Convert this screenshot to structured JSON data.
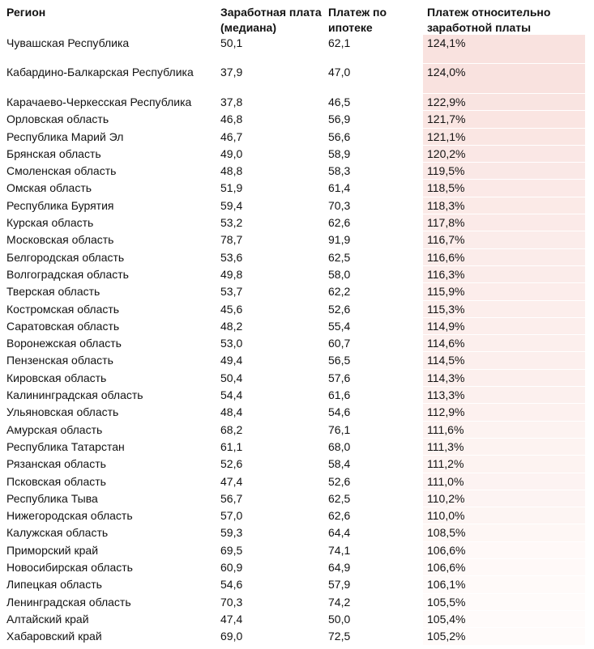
{
  "colors": {
    "background": "#ffffff",
    "text": "#121212",
    "heat_min": "#fffbfa",
    "heat_max": "#f9e2df"
  },
  "chart_data": {
    "type": "table",
    "title": "",
    "columns": [
      "Регион",
      "Заработная плата (медиана)",
      "Платеж по ипотеке",
      "Платеж относительно заработной платы"
    ],
    "heatmap_column": "Платеж относительно заработной платы",
    "heat_min_value": 105.2,
    "heat_max_value": 124.1,
    "rows": [
      {
        "region": "Чувашская Республика",
        "salary": "50,1",
        "payment": "62,1",
        "ratio": "124,1%",
        "ratio_value": 124.1
      },
      {
        "region": "Кабардино-Балкарская Республика",
        "salary": "37,9",
        "payment": "47,0",
        "ratio": "124,0%",
        "ratio_value": 124.0
      },
      {
        "region": "Карачаево-Черкесская Республика",
        "salary": "37,8",
        "payment": "46,5",
        "ratio": "122,9%",
        "ratio_value": 122.9
      },
      {
        "region": "Орловская область",
        "salary": "46,8",
        "payment": "56,9",
        "ratio": "121,7%",
        "ratio_value": 121.7
      },
      {
        "region": "Республика Марий Эл",
        "salary": "46,7",
        "payment": "56,6",
        "ratio": "121,1%",
        "ratio_value": 121.1
      },
      {
        "region": "Брянская область",
        "salary": "49,0",
        "payment": "58,9",
        "ratio": "120,2%",
        "ratio_value": 120.2
      },
      {
        "region": "Смоленская область",
        "salary": "48,8",
        "payment": "58,3",
        "ratio": "119,5%",
        "ratio_value": 119.5
      },
      {
        "region": "Омская область",
        "salary": "51,9",
        "payment": "61,4",
        "ratio": "118,5%",
        "ratio_value": 118.5
      },
      {
        "region": "Республика Бурятия",
        "salary": "59,4",
        "payment": "70,3",
        "ratio": "118,3%",
        "ratio_value": 118.3
      },
      {
        "region": "Курская область",
        "salary": "53,2",
        "payment": "62,6",
        "ratio": "117,8%",
        "ratio_value": 117.8
      },
      {
        "region": "Московская область",
        "salary": "78,7",
        "payment": "91,9",
        "ratio": "116,7%",
        "ratio_value": 116.7
      },
      {
        "region": "Белгородская область",
        "salary": "53,6",
        "payment": "62,5",
        "ratio": "116,6%",
        "ratio_value": 116.6
      },
      {
        "region": "Волгоградская область",
        "salary": "49,8",
        "payment": "58,0",
        "ratio": "116,3%",
        "ratio_value": 116.3
      },
      {
        "region": "Тверская область",
        "salary": "53,7",
        "payment": "62,2",
        "ratio": "115,9%",
        "ratio_value": 115.9
      },
      {
        "region": "Костромская область",
        "salary": "45,6",
        "payment": "52,6",
        "ratio": "115,3%",
        "ratio_value": 115.3
      },
      {
        "region": "Саратовская область",
        "salary": "48,2",
        "payment": "55,4",
        "ratio": "114,9%",
        "ratio_value": 114.9
      },
      {
        "region": "Воронежская область",
        "salary": "53,0",
        "payment": "60,7",
        "ratio": "114,6%",
        "ratio_value": 114.6
      },
      {
        "region": "Пензенская область",
        "salary": "49,4",
        "payment": "56,5",
        "ratio": "114,5%",
        "ratio_value": 114.5
      },
      {
        "region": "Кировская область",
        "salary": "50,4",
        "payment": "57,6",
        "ratio": "114,3%",
        "ratio_value": 114.3
      },
      {
        "region": "Калининградская область",
        "salary": "54,4",
        "payment": "61,6",
        "ratio": "113,3%",
        "ratio_value": 113.3
      },
      {
        "region": "Ульяновская область",
        "salary": "48,4",
        "payment": "54,6",
        "ratio": "112,9%",
        "ratio_value": 112.9
      },
      {
        "region": "Амурская область",
        "salary": "68,2",
        "payment": "76,1",
        "ratio": "111,6%",
        "ratio_value": 111.6
      },
      {
        "region": "Республика Татарстан",
        "salary": "61,1",
        "payment": "68,0",
        "ratio": "111,3%",
        "ratio_value": 111.3
      },
      {
        "region": "Рязанская область",
        "salary": "52,6",
        "payment": "58,4",
        "ratio": "111,2%",
        "ratio_value": 111.2
      },
      {
        "region": "Псковская область",
        "salary": "47,4",
        "payment": "52,6",
        "ratio": "111,0%",
        "ratio_value": 111.0
      },
      {
        "region": "Республика Тыва",
        "salary": "56,7",
        "payment": "62,5",
        "ratio": "110,2%",
        "ratio_value": 110.2
      },
      {
        "region": "Нижегородская область",
        "salary": "57,0",
        "payment": "62,6",
        "ratio": "110,0%",
        "ratio_value": 110.0
      },
      {
        "region": "Калужская область",
        "salary": "59,3",
        "payment": "64,4",
        "ratio": "108,5%",
        "ratio_value": 108.5
      },
      {
        "region": "Приморский край",
        "salary": "69,5",
        "payment": "74,1",
        "ratio": "106,6%",
        "ratio_value": 106.6
      },
      {
        "region": "Новосибирская область",
        "salary": "60,9",
        "payment": "64,9",
        "ratio": "106,6%",
        "ratio_value": 106.6
      },
      {
        "region": "Липецкая область",
        "salary": "54,6",
        "payment": "57,9",
        "ratio": "106,1%",
        "ratio_value": 106.1
      },
      {
        "region": "Ленинградская область",
        "salary": "70,3",
        "payment": "74,2",
        "ratio": "105,5%",
        "ratio_value": 105.5
      },
      {
        "region": "Алтайский край",
        "salary": "47,4",
        "payment": "50,0",
        "ratio": "105,4%",
        "ratio_value": 105.4
      },
      {
        "region": "Хабаровский край",
        "salary": "69,0",
        "payment": "72,5",
        "ratio": "105,2%",
        "ratio_value": 105.2
      }
    ]
  }
}
